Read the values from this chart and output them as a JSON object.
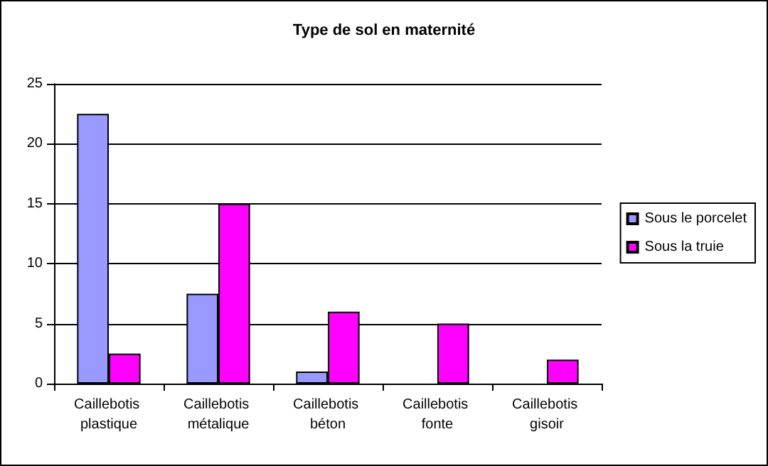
{
  "chart_data": {
    "type": "bar",
    "title": "Type de sol en maternité",
    "categories": [
      "Caillebotis plastique",
      "Caillebotis métalique",
      "Caillebotis béton",
      "Caillebotis fonte",
      "Caillebotis gisoir"
    ],
    "series": [
      {
        "name": "Sous le porcelet",
        "color": "#9999ff",
        "values": [
          22.5,
          7.5,
          1,
          null,
          null
        ]
      },
      {
        "name": "Sous la truie",
        "color": "#ff00ff",
        "values": [
          2.5,
          15,
          6,
          5,
          2
        ]
      }
    ],
    "ylim": [
      0,
      25
    ],
    "yticks": [
      0,
      5,
      10,
      15,
      20,
      25
    ],
    "grid": "y",
    "legend": "right"
  }
}
